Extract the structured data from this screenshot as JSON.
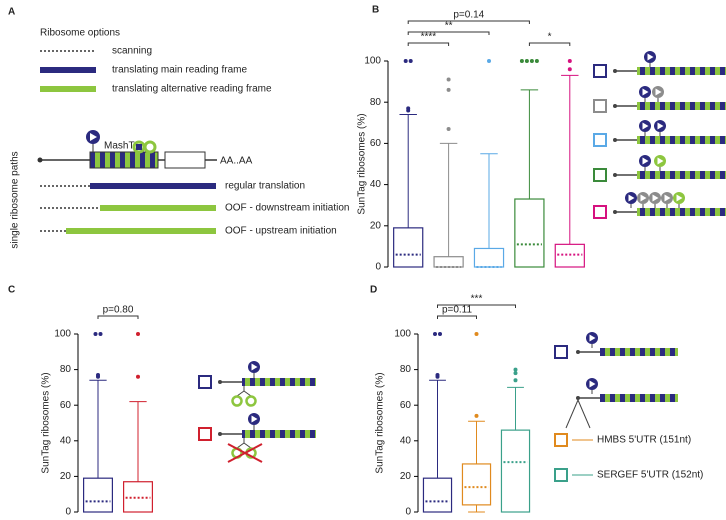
{
  "diagram": {
    "panel_label": "A",
    "legend_title": "Ribosome options",
    "legend": [
      "scanning",
      "translating main reading frame",
      "translating alternative reading frame"
    ],
    "construct": {
      "tag": "MashTag",
      "polyA": "AA..AA"
    },
    "paths_label": "single ribosome paths",
    "paths": [
      "regular translation",
      "OOF - downstream initiation",
      "OOF - upstream initiation"
    ]
  },
  "chart_data": [
    {
      "type": "box",
      "panel_label": "B",
      "ylabel": "SunTag ribosomes (%)",
      "ylim": [
        0,
        100
      ],
      "yticks": [
        0,
        20,
        40,
        60,
        80,
        100
      ],
      "series": [
        {
          "color": "#2b2a7f",
          "whisker_low": 0,
          "q1": 0,
          "median": 6,
          "q3": 19,
          "whisker_high": 74,
          "outliers": [
            76,
            77,
            100,
            100
          ]
        },
        {
          "color": "#8c8c8c",
          "whisker_low": 0,
          "q1": 0,
          "median": 0,
          "q3": 5,
          "whisker_high": 60,
          "outliers": [
            67,
            86,
            91
          ]
        },
        {
          "color": "#5aa9e6",
          "whisker_low": 0,
          "q1": 0,
          "median": 0,
          "q3": 9,
          "whisker_high": 55,
          "outliers": [
            100
          ]
        },
        {
          "color": "#3a8a3a",
          "whisker_low": 0,
          "q1": 0,
          "median": 11,
          "q3": 33,
          "whisker_high": 86,
          "outliers": [
            100,
            100,
            100,
            100
          ]
        },
        {
          "color": "#d6117f",
          "whisker_low": 0,
          "q1": 0,
          "median": 6,
          "q3": 11,
          "whisker_high": 93,
          "outliers": [
            96,
            100
          ]
        }
      ],
      "brackets": [
        {
          "from": 0,
          "to": 1,
          "label": "****"
        },
        {
          "from": 3,
          "to": 4,
          "label": "*"
        },
        {
          "from": 0,
          "to": 2,
          "label": "**"
        },
        {
          "from": 0,
          "to": 3,
          "label": "p=0.14"
        }
      ]
    },
    {
      "type": "box",
      "panel_label": "C",
      "ylabel": "SunTag ribosomes (%)",
      "ylim": [
        0,
        100
      ],
      "yticks": [
        0,
        20,
        40,
        60,
        80,
        100
      ],
      "series": [
        {
          "color": "#2b2a7f",
          "whisker_low": 0,
          "q1": 0,
          "median": 6,
          "q3": 19,
          "whisker_high": 74,
          "outliers": [
            76,
            77,
            100,
            100
          ]
        },
        {
          "color": "#d0202e",
          "whisker_low": 0,
          "q1": 0,
          "median": 8,
          "q3": 17,
          "whisker_high": 62,
          "outliers": [
            76,
            100
          ]
        }
      ],
      "brackets": [
        {
          "from": 0,
          "to": 1,
          "label": "p=0.80"
        }
      ]
    },
    {
      "type": "box",
      "panel_label": "D",
      "ylabel": "SunTag ribosomes (%)",
      "ylim": [
        0,
        100
      ],
      "yticks": [
        0,
        20,
        40,
        60,
        80,
        100
      ],
      "series": [
        {
          "color": "#2b2a7f",
          "whisker_low": 0,
          "q1": 0,
          "median": 6,
          "q3": 19,
          "whisker_high": 74,
          "outliers": [
            76,
            77,
            100,
            100
          ]
        },
        {
          "name": "HMBS 5'UTR (151nt)",
          "color": "#e08a1e",
          "whisker_low": 0,
          "q1": 4,
          "median": 14,
          "q3": 27,
          "whisker_high": 51,
          "outliers": [
            54,
            100
          ]
        },
        {
          "name": "SERGEF 5'UTR (152nt)",
          "color": "#3aa08a",
          "whisker_low": 0,
          "q1": 0,
          "median": 28,
          "q3": 46,
          "whisker_high": 70,
          "outliers": [
            74,
            78,
            80
          ]
        }
      ],
      "brackets": [
        {
          "from": 0,
          "to": 1,
          "label": "p=0.11"
        },
        {
          "from": 0,
          "to": 2,
          "label": "***"
        }
      ]
    }
  ]
}
